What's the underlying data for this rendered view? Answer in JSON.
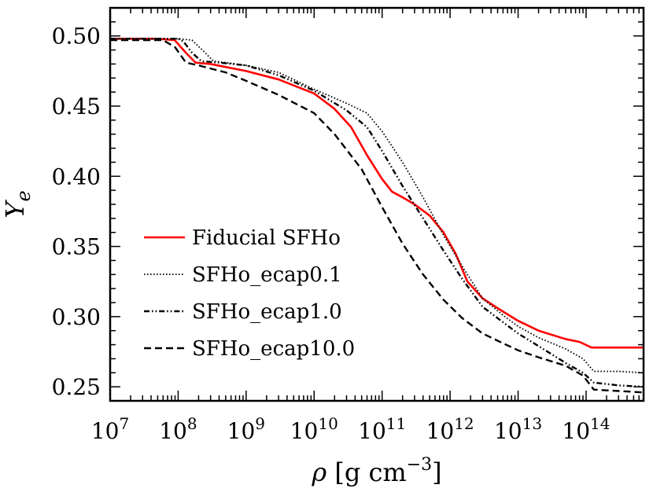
{
  "chart_data": {
    "type": "line",
    "title": "",
    "xlabel": "ρ [g cm⁻³]",
    "ylabel": "Ye",
    "x_scale": "log",
    "xlim": [
      10000000.0,
      700000000000000.0
    ],
    "ylim": [
      0.24,
      0.52
    ],
    "x_ticks": [
      {
        "value": 10000000.0,
        "base": "10",
        "exp": "7"
      },
      {
        "value": 100000000.0,
        "base": "10",
        "exp": "8"
      },
      {
        "value": 1000000000.0,
        "base": "10",
        "exp": "9"
      },
      {
        "value": 10000000000.0,
        "base": "10",
        "exp": "10"
      },
      {
        "value": 100000000000.0,
        "base": "10",
        "exp": "11"
      },
      {
        "value": 1000000000000.0,
        "base": "10",
        "exp": "12"
      },
      {
        "value": 10000000000000.0,
        "base": "10",
        "exp": "13"
      },
      {
        "value": 100000000000000.0,
        "base": "10",
        "exp": "14"
      }
    ],
    "y_ticks": [
      "0.25",
      "0.30",
      "0.35",
      "0.40",
      "0.45",
      "0.50"
    ],
    "grid": false,
    "legend_position": "lower-left",
    "series": [
      {
        "name": "Fiducial SFHo",
        "color": "#ff0000",
        "style": "solid",
        "x": [
          10000000.0,
          50000000.0,
          89000000.0,
          130000000.0,
          180000000.0,
          300000000.0,
          1000000000.0,
          3000000000.0,
          10000000000.0,
          20000000000.0,
          35000000000.0,
          60000000000.0,
          100000000000.0,
          140000000000.0,
          200000000000.0,
          300000000000.0,
          500000000000.0,
          800000000000.0,
          1200000000000.0,
          1800000000000.0,
          3000000000000.0,
          5000000000000.0,
          10000000000000.0,
          20000000000000.0,
          50000000000000.0,
          80000000000000.0,
          120000000000000.0,
          200000000000000.0,
          700000000000000.0
        ],
        "y": [
          0.498,
          0.498,
          0.497,
          0.488,
          0.481,
          0.48,
          0.475,
          0.469,
          0.459,
          0.448,
          0.435,
          0.415,
          0.398,
          0.389,
          0.385,
          0.38,
          0.372,
          0.36,
          0.345,
          0.325,
          0.313,
          0.306,
          0.297,
          0.29,
          0.284,
          0.282,
          0.278,
          0.278,
          0.278
        ]
      },
      {
        "name": "SFHo_ecap0.1",
        "color": "#000000",
        "style": "dotted",
        "x": [
          10000000.0,
          100000000.0,
          160000000.0,
          250000000.0,
          330000000.0,
          500000000.0,
          1000000000.0,
          3000000000.0,
          10000000000.0,
          30000000000.0,
          60000000000.0,
          100000000000.0,
          200000000000.0,
          400000000000.0,
          800000000000.0,
          1500000000000.0,
          3000000000000.0,
          6000000000000.0,
          10000000000000.0,
          20000000000000.0,
          50000000000000.0,
          90000000000000.0,
          130000000000000.0,
          300000000000000.0,
          700000000000000.0
        ],
        "y": [
          0.498,
          0.498,
          0.497,
          0.488,
          0.482,
          0.481,
          0.479,
          0.474,
          0.462,
          0.452,
          0.445,
          0.432,
          0.41,
          0.385,
          0.358,
          0.336,
          0.313,
          0.301,
          0.293,
          0.285,
          0.277,
          0.27,
          0.261,
          0.261,
          0.26
        ]
      },
      {
        "name": "SFHo_ecap1.0",
        "color": "#000000",
        "style": "dashdotdot",
        "x": [
          10000000.0,
          100000000.0,
          120000000.0,
          160000000.0,
          220000000.0,
          400000000.0,
          1000000000.0,
          3000000000.0,
          10000000000.0,
          30000000000.0,
          60000000000.0,
          100000000000.0,
          200000000000.0,
          400000000000.0,
          800000000000.0,
          1500000000000.0,
          3000000000000.0,
          6000000000000.0,
          10000000000000.0,
          20000000000000.0,
          50000000000000.0,
          90000000000000.0,
          130000000000000.0,
          300000000000000.0,
          700000000000000.0
        ],
        "y": [
          0.498,
          0.498,
          0.496,
          0.488,
          0.482,
          0.481,
          0.479,
          0.472,
          0.461,
          0.447,
          0.435,
          0.418,
          0.393,
          0.37,
          0.347,
          0.327,
          0.307,
          0.296,
          0.288,
          0.279,
          0.267,
          0.26,
          0.253,
          0.251,
          0.25
        ]
      },
      {
        "name": "SFHo_ecap10.0",
        "color": "#000000",
        "style": "dashed",
        "x": [
          10000000.0,
          60000000.0,
          90000000.0,
          130000000.0,
          200000000.0,
          500000000.0,
          1000000000.0,
          3000000000.0,
          10000000000.0,
          20000000000.0,
          50000000000.0,
          100000000000.0,
          200000000000.0,
          400000000000.0,
          800000000000.0,
          1500000000000.0,
          3000000000000.0,
          6000000000000.0,
          10000000000000.0,
          20000000000000.0,
          50000000000000.0,
          90000000000000.0,
          130000000000000.0,
          300000000000000.0,
          700000000000000.0
        ],
        "y": [
          0.497,
          0.497,
          0.492,
          0.481,
          0.479,
          0.474,
          0.468,
          0.458,
          0.445,
          0.43,
          0.405,
          0.378,
          0.352,
          0.33,
          0.312,
          0.299,
          0.288,
          0.281,
          0.276,
          0.271,
          0.265,
          0.258,
          0.248,
          0.247,
          0.246
        ]
      }
    ]
  }
}
